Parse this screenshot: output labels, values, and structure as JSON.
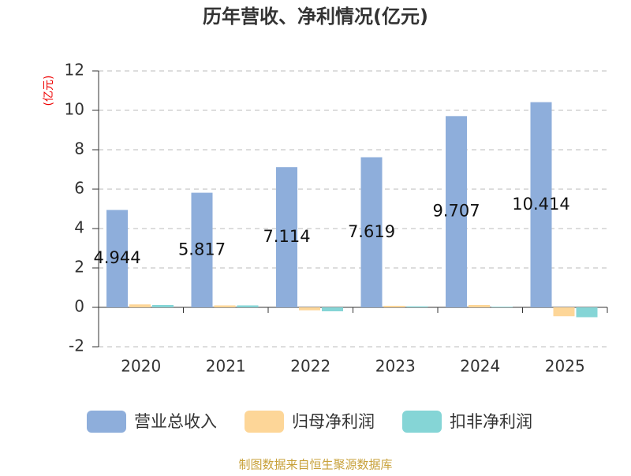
{
  "chart_data": {
    "type": "bar",
    "title": "历年营收、净利情况(亿元)",
    "y_label": "(亿元)",
    "categories": [
      "2020",
      "2021",
      "2022",
      "2023",
      "2024",
      "2025"
    ],
    "series": [
      {
        "name": "营业总收入",
        "color": "#8eaedb",
        "values": [
          4.944,
          5.817,
          7.114,
          7.619,
          9.707,
          10.414
        ]
      },
      {
        "name": "归母净利润",
        "color": "#fdd698",
        "values": [
          0.15,
          0.1,
          -0.15,
          0.08,
          0.12,
          -0.45
        ]
      },
      {
        "name": "扣非净利润",
        "color": "#85d5d6",
        "values": [
          0.12,
          0.1,
          -0.2,
          0.05,
          0.03,
          -0.5
        ]
      }
    ],
    "ylim": [
      -2,
      12
    ],
    "yticks": [
      -2,
      0,
      2,
      4,
      6,
      8,
      10,
      12
    ],
    "grid": true,
    "source": "制图数据来自恒生聚源数据库"
  }
}
